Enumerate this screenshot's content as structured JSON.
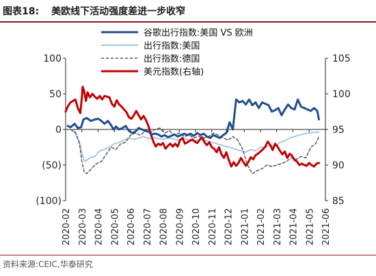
{
  "figure": {
    "label": "图表18:",
    "title": "美欧线下活动强度差进一步收窄",
    "source": "资料来源:CEIC,华泰研究"
  },
  "chart_data": {
    "type": "line",
    "categories": [
      "2020-02",
      "2020-03",
      "2020-04",
      "2020-05",
      "2020-06",
      "2020-07",
      "2020-08",
      "2020-09",
      "2020-10",
      "2020-11",
      "2020-12",
      "2021-01",
      "2021-02",
      "2021-03",
      "2021-04",
      "2021-05",
      "2021-06"
    ],
    "y_left": {
      "min": -100,
      "max": 100,
      "ticks": [
        100,
        50,
        0,
        -50,
        -100
      ],
      "tick_labels": [
        "100",
        "50",
        "0",
        "(50)",
        "(100)"
      ]
    },
    "y_right": {
      "min": 85,
      "max": 105,
      "ticks": [
        105,
        100,
        95,
        90,
        85
      ],
      "tick_labels": [
        "105",
        "100",
        "95",
        "90",
        "85"
      ]
    },
    "legend_position": "top-right",
    "series": [
      {
        "name": "谷歌出行指数:美国 VS 欧洲",
        "axis": "left",
        "color": "#1f4e8c",
        "style": "solid-thick",
        "x": [
          0.13,
          0.3,
          0.55,
          0.75,
          0.95,
          1.1,
          1.3,
          1.55,
          1.8,
          2.0,
          2.15,
          2.4,
          2.6,
          2.8,
          2.95,
          3.1,
          3.3,
          3.5,
          3.7,
          3.9,
          4.1,
          4.3,
          4.5,
          4.7,
          4.9,
          5.1,
          5.3,
          5.5,
          5.7,
          5.9,
          6.1,
          6.3,
          6.5,
          6.7,
          6.9,
          7.1,
          7.3,
          7.5,
          7.7,
          7.9,
          8.1,
          8.3,
          8.5,
          8.7,
          8.9,
          9.1,
          9.3,
          9.5,
          9.7,
          9.9,
          10.1,
          10.3,
          10.5,
          10.7,
          10.9,
          11.1,
          11.3,
          11.5,
          11.7,
          11.9,
          12.1,
          12.3,
          12.5,
          12.7,
          12.9,
          13.1,
          13.3,
          13.5,
          13.7,
          13.9,
          14.1,
          14.3,
          14.5,
          14.7,
          14.9,
          15.1,
          15.3,
          15.5,
          15.6
        ],
        "y": [
          5,
          3,
          8,
          2,
          3,
          14,
          16,
          12,
          14,
          15,
          13,
          8,
          12,
          6,
          0,
          4,
          0,
          2,
          5,
          -2,
          -5,
          -3,
          2,
          0,
          -2,
          -3,
          -7,
          -6,
          -7,
          -10,
          -8,
          -11,
          -9,
          -7,
          -10,
          -8,
          -6,
          -8,
          -6,
          -9,
          -5,
          -8,
          -6,
          -10,
          -12,
          -8,
          -10,
          -12,
          -8,
          -5,
          10,
          0,
          42,
          38,
          40,
          35,
          42,
          34,
          38,
          30,
          38,
          36,
          34,
          25,
          27,
          30,
          20,
          28,
          35,
          30,
          28,
          42,
          32,
          30,
          28,
          26,
          30,
          26,
          14
        ]
      },
      {
        "name": "出行指数:美国",
        "axis": "left",
        "color": "#9ec3e6",
        "style": "solid",
        "x": [
          0.3,
          0.6,
          0.85,
          1.05,
          1.2,
          1.5,
          1.8,
          2.1,
          2.4,
          2.7,
          3.0,
          3.3,
          3.6,
          3.9,
          4.2,
          4.5,
          4.8,
          5.1,
          5.4,
          5.7,
          6.0,
          6.3,
          6.6,
          6.9,
          7.2,
          7.5,
          7.8,
          8.1,
          8.4,
          8.7,
          9.0,
          9.3,
          9.6,
          9.9,
          10.2,
          10.5,
          10.8,
          11.1,
          11.4,
          11.7,
          12.0,
          12.3,
          12.6,
          12.9,
          13.2,
          13.5,
          13.8,
          14.1,
          14.4,
          14.7,
          15.0,
          15.3,
          15.6
        ],
        "y": [
          0,
          -3,
          -18,
          -38,
          -45,
          -40,
          -38,
          -30,
          -28,
          -25,
          -20,
          -18,
          -15,
          -12,
          -14,
          -12,
          -10,
          -13,
          -11,
          -13,
          -14,
          -12,
          -13,
          -15,
          -12,
          -14,
          -16,
          -15,
          -13,
          -16,
          -18,
          -20,
          -22,
          -24,
          -26,
          -28,
          -30,
          -32,
          -28,
          -30,
          -25,
          -26,
          -22,
          -24,
          -18,
          -16,
          -12,
          -10,
          -8,
          -6,
          -5,
          -4,
          -4
        ]
      },
      {
        "name": "出行指数:德国",
        "axis": "left",
        "color": "#555555",
        "style": "dashed",
        "x": [
          0.3,
          0.6,
          0.85,
          1.0,
          1.15,
          1.3,
          1.6,
          1.9,
          2.2,
          2.5,
          2.8,
          3.1,
          3.4,
          3.7,
          4.0,
          4.3,
          4.6,
          4.9,
          5.2,
          5.5,
          5.8,
          6.1,
          6.4,
          6.7,
          7.0,
          7.3,
          7.6,
          7.9,
          8.2,
          8.5,
          8.8,
          9.1,
          9.4,
          9.7,
          10.0,
          10.3,
          10.6,
          10.9,
          11.2,
          11.5,
          11.8,
          12.1,
          12.4,
          12.7,
          13.0,
          13.3,
          13.6,
          13.9,
          14.2,
          14.5,
          14.8,
          15.1,
          15.4,
          15.6
        ],
        "y": [
          0,
          -5,
          -20,
          -45,
          -60,
          -62,
          -55,
          -48,
          -45,
          -35,
          -25,
          -28,
          -20,
          -18,
          -8,
          -5,
          -8,
          -2,
          -5,
          0,
          2,
          -5,
          -2,
          -8,
          -5,
          -10,
          -8,
          -12,
          -10,
          -12,
          -10,
          -5,
          -8,
          -12,
          -15,
          -10,
          -15,
          -28,
          -50,
          -62,
          -58,
          -55,
          -50,
          -52,
          -50,
          -48,
          -45,
          -40,
          -42,
          -38,
          -40,
          -25,
          -20,
          -10
        ]
      },
      {
        "name": "美元指数(右轴)",
        "axis": "right",
        "color": "#c00000",
        "style": "solid-thick",
        "x": [
          0.0,
          0.15,
          0.3,
          0.45,
          0.6,
          0.75,
          0.9,
          1.0,
          1.05,
          1.15,
          1.25,
          1.35,
          1.5,
          1.65,
          1.8,
          1.95,
          2.1,
          2.25,
          2.4,
          2.55,
          2.7,
          2.85,
          3.0,
          3.15,
          3.3,
          3.45,
          3.6,
          3.75,
          3.9,
          4.05,
          4.2,
          4.35,
          4.5,
          4.65,
          4.8,
          4.95,
          5.1,
          5.25,
          5.4,
          5.55,
          5.7,
          5.85,
          6.0,
          6.15,
          6.3,
          6.45,
          6.6,
          6.75,
          6.9,
          7.05,
          7.2,
          7.35,
          7.5,
          7.65,
          7.8,
          7.95,
          8.1,
          8.25,
          8.4,
          8.55,
          8.7,
          8.85,
          9.0,
          9.15,
          9.3,
          9.45,
          9.6,
          9.75,
          9.9,
          10.05,
          10.2,
          10.35,
          10.5,
          10.65,
          10.8,
          10.95,
          11.1,
          11.25,
          11.4,
          11.55,
          11.7,
          11.85,
          12.0,
          12.15,
          12.3,
          12.45,
          12.6,
          12.75,
          12.9,
          13.05,
          13.2,
          13.35,
          13.5,
          13.65,
          13.8,
          13.95,
          14.1,
          14.25,
          14.4,
          14.55,
          14.7,
          14.85,
          15.0,
          15.15,
          15.3,
          15.45,
          15.6
        ],
        "y": [
          97.5,
          98.3,
          98.8,
          99.0,
          99.2,
          98.0,
          97.3,
          99.5,
          101.0,
          100.3,
          99.0,
          100.2,
          99.5,
          100.0,
          99.6,
          99.3,
          99.7,
          99.2,
          99.7,
          99.6,
          99.5,
          98.6,
          98.2,
          99.1,
          98.5,
          98.2,
          97.8,
          97.4,
          96.7,
          96.5,
          97.0,
          97.6,
          97.0,
          96.4,
          96.9,
          96.3,
          95.5,
          94.3,
          93.3,
          92.6,
          93.0,
          92.8,
          93.1,
          92.3,
          92.7,
          93.0,
          92.6,
          93.0,
          92.6,
          93.5,
          93.8,
          93.0,
          93.2,
          93.4,
          93.6,
          93.3,
          93.1,
          93.5,
          93.9,
          93.2,
          92.8,
          93.2,
          92.5,
          92.3,
          91.8,
          92.5,
          91.5,
          91.0,
          91.8,
          90.7,
          89.8,
          90.4,
          89.9,
          90.3,
          91.0,
          90.4,
          89.9,
          90.4,
          91.1,
          90.8,
          91.4,
          91.6,
          91.9,
          92.2,
          92.6,
          93.3,
          92.8,
          92.1,
          93.0,
          92.6,
          92.0,
          91.5,
          91.9,
          91.0,
          91.6,
          91.3,
          90.7,
          90.5,
          90.0,
          90.2,
          90.0,
          89.9,
          90.3,
          90.0,
          89.8,
          90.2,
          90.3
        ]
      }
    ]
  }
}
